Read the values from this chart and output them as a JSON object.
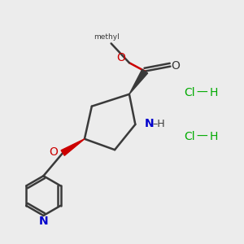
{
  "bg_color": "#ececec",
  "line_color": "#3a3a3a",
  "red_color": "#cc0000",
  "blue_color": "#0000cc",
  "green_color": "#00aa00",
  "line_width": 1.8,
  "font_size": 9,
  "hcl1": [
    0.82,
    0.62
  ],
  "hcl2": [
    0.82,
    0.44
  ]
}
